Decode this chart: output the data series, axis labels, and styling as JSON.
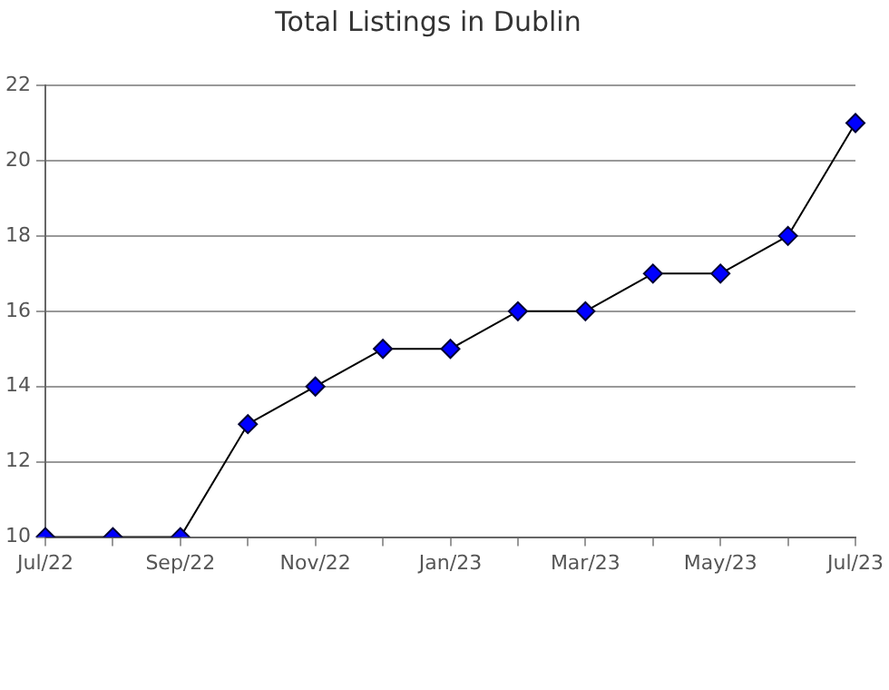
{
  "chart_data": {
    "type": "line",
    "title": "Total Listings in Dublin",
    "categories": [
      "Jul/22",
      null,
      "Sep/22",
      null,
      "Nov/22",
      null,
      "Jan/23",
      null,
      "Mar/23",
      null,
      "May/23",
      null,
      "Jul/23"
    ],
    "series": [
      {
        "color": "#0000ff",
        "values": [
          10,
          10,
          10,
          13,
          14,
          15,
          15,
          16,
          16,
          17,
          17,
          18,
          21
        ]
      }
    ],
    "ylim": [
      10,
      22
    ],
    "yticks": [
      10,
      12,
      14,
      16,
      18,
      20,
      22
    ],
    "grid": "y",
    "legend": false,
    "marker": "diamond",
    "line_style": "solid"
  }
}
